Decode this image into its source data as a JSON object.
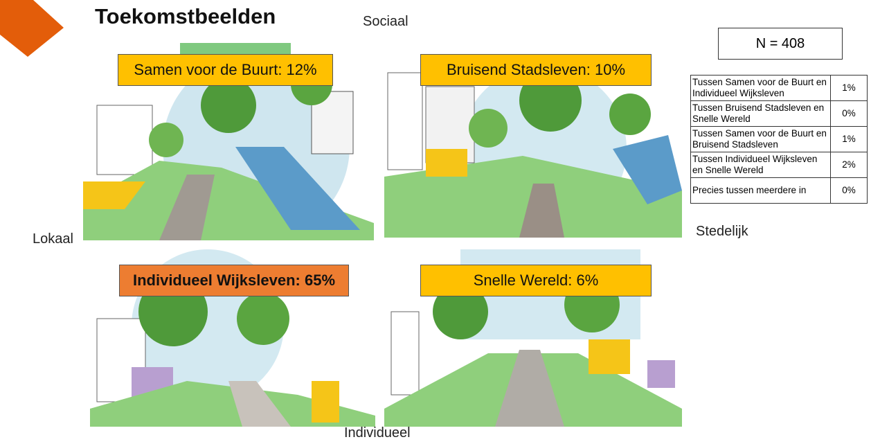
{
  "header": {
    "title": "Toekomstbeelden"
  },
  "axes": {
    "top": "Sociaal",
    "left": "Lokaal",
    "right": "Stedelijk",
    "bottom": "Individueel"
  },
  "quadrants": [
    {
      "label": "Samen voor de Buurt: 12%"
    },
    {
      "label": "Bruisend Stadsleven: 10%"
    },
    {
      "label": "Individueel Wijksleven: 65%"
    },
    {
      "label": "Snelle Wereld: 6%"
    }
  ],
  "sample": "N = 408",
  "table": {
    "rows": [
      [
        "Tussen Samen voor de Buurt en Individueel Wijksleven",
        "1%"
      ],
      [
        "Tussen Bruisend Stadsleven en Snelle Wereld",
        "0%"
      ],
      [
        "Tussen Samen voor de Buurt en Bruisend Stadsleven",
        "1%"
      ],
      [
        "Tussen Individueel Wijksleven en Snelle Wereld",
        "2%"
      ],
      [
        "Precies tussen meerdere in",
        "0%"
      ]
    ]
  }
}
